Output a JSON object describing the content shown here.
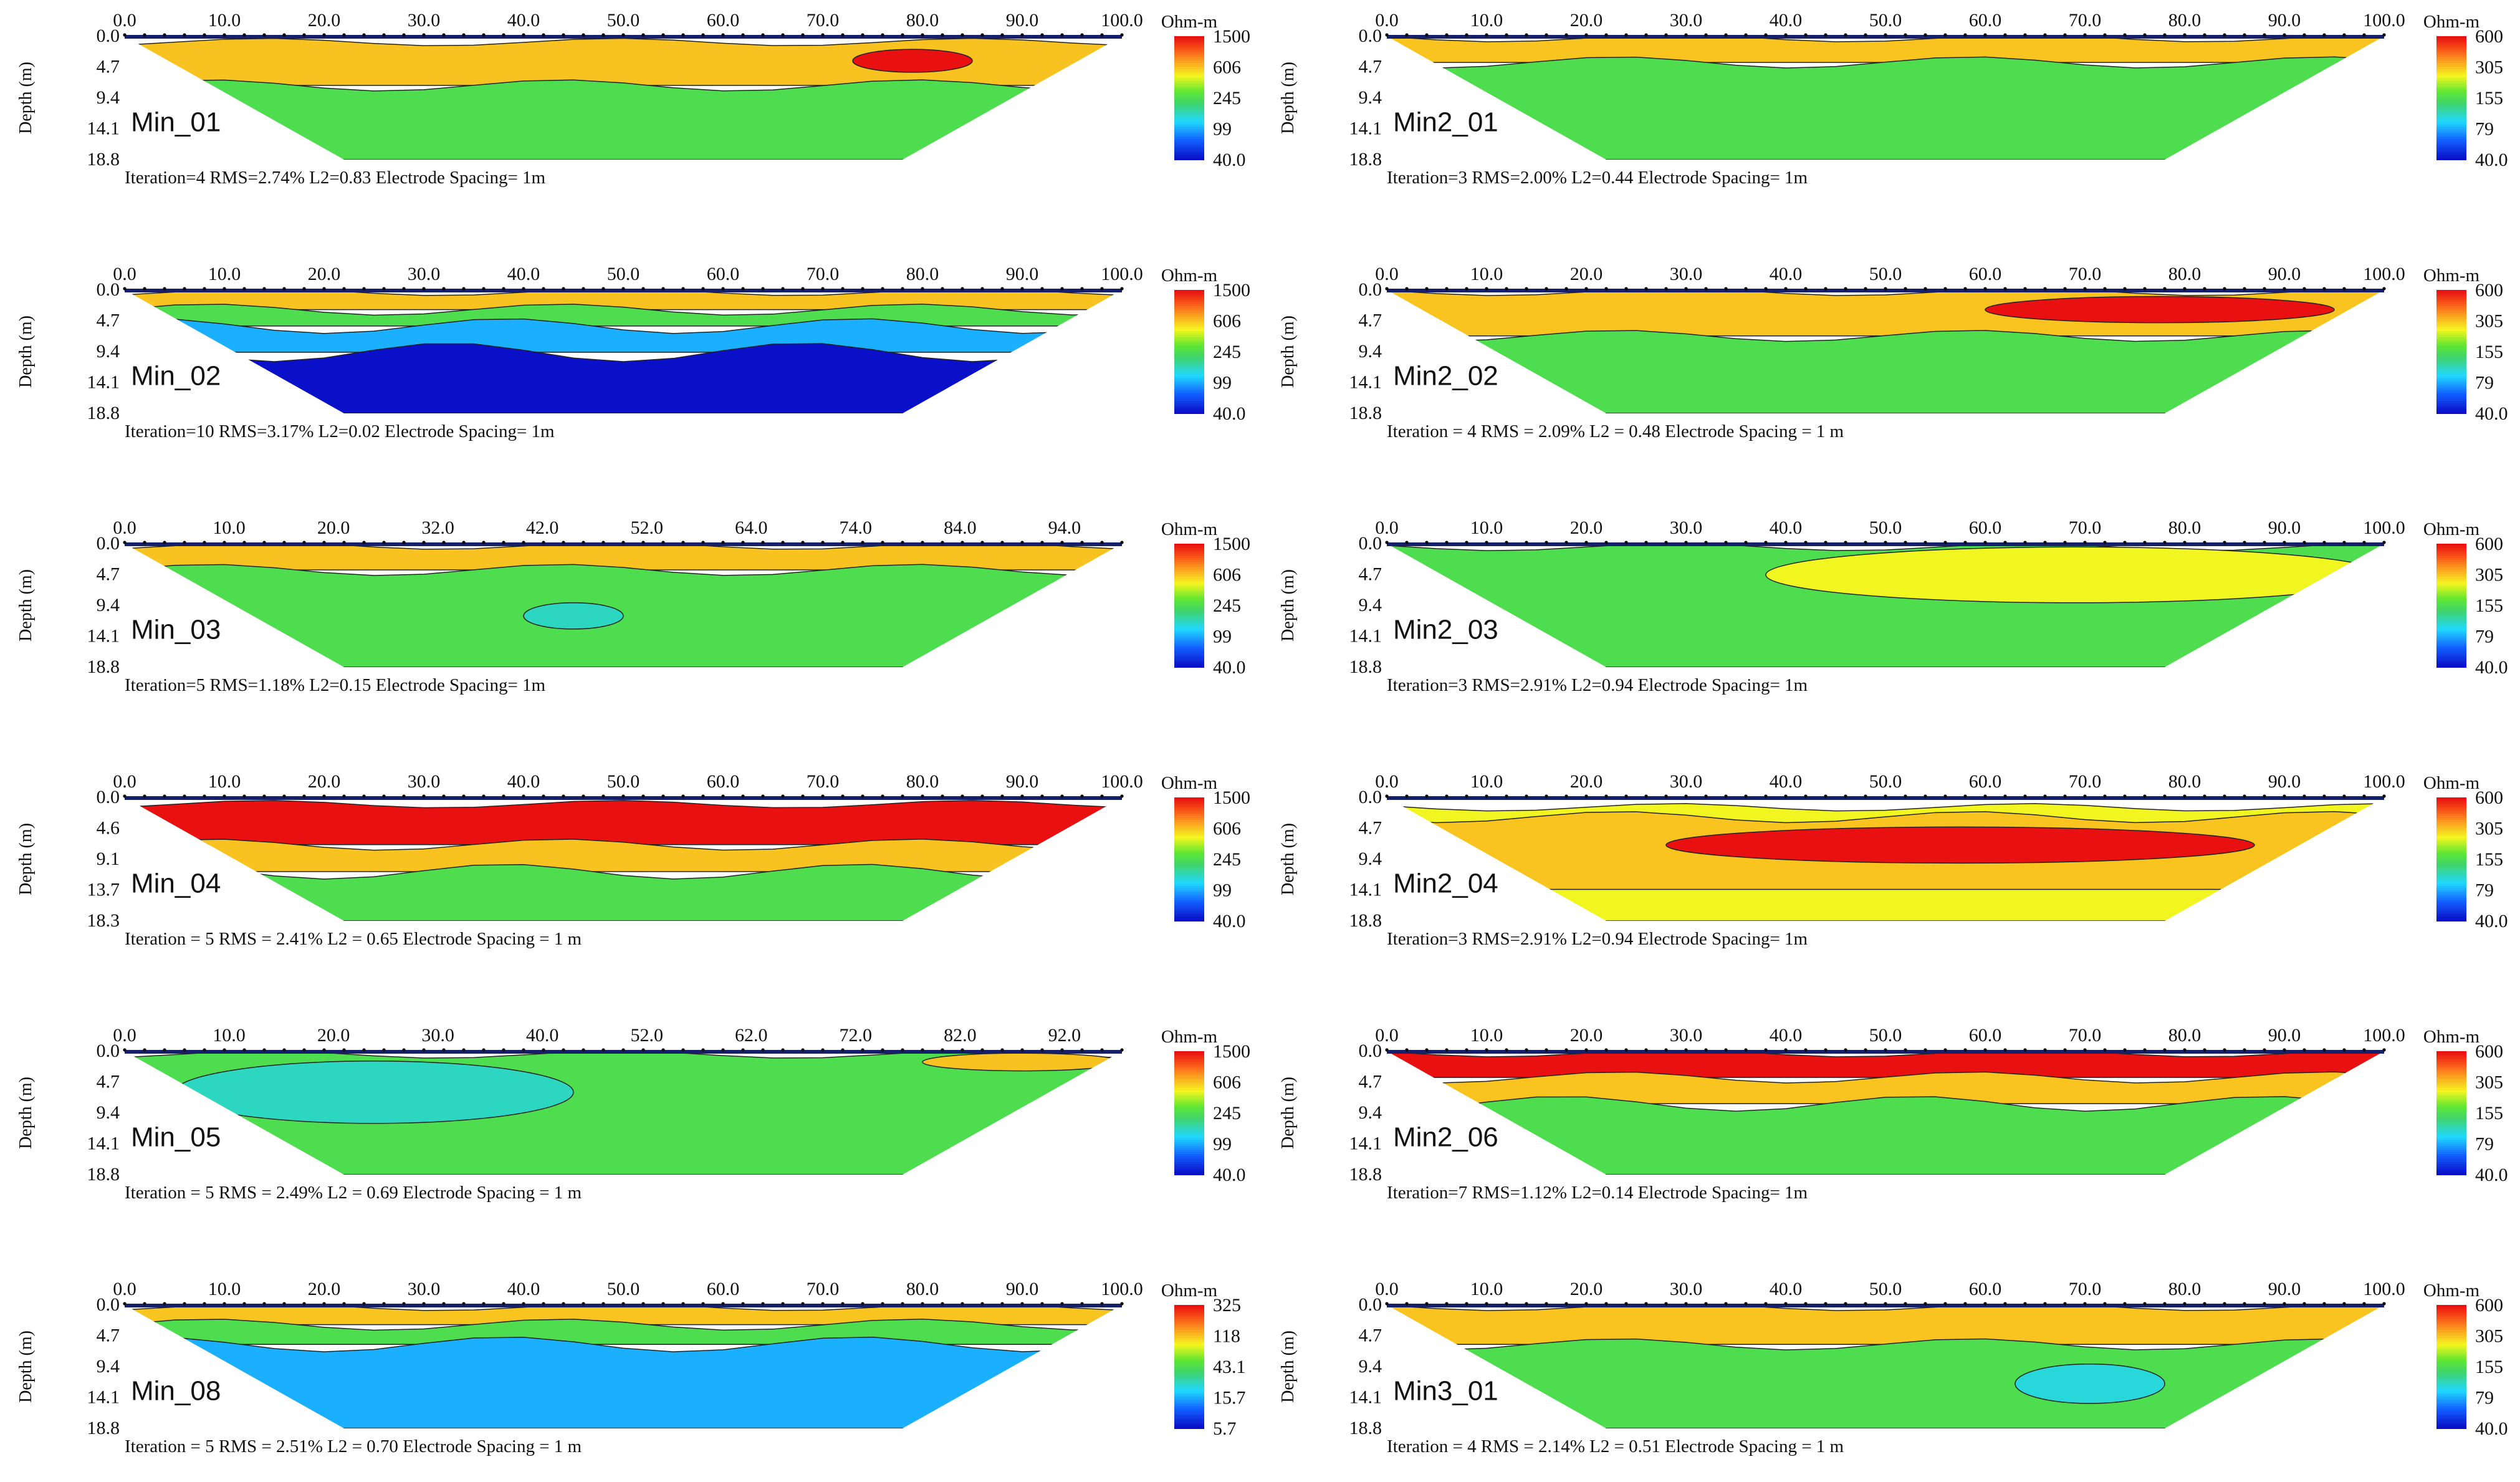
{
  "chart_data": [
    {
      "type": "heatmap",
      "profile": "Min_01",
      "x_ticks": [
        "0.0",
        "10.0",
        "20.0",
        "30.0",
        "40.0",
        "50.0",
        "60.0",
        "70.0",
        "80.0",
        "90.0",
        "100.0"
      ],
      "depth_ticks": [
        "0.0",
        "4.7",
        "9.4",
        "14.1",
        "18.8"
      ],
      "ylabel": "Depth (m)",
      "unit": "Ohm-m",
      "scale": [
        "1500",
        "606",
        "245",
        "99",
        "40.0"
      ],
      "caption": "Iteration=4  RMS=2.74%  L2=0.83  Electrode Spacing= 1m",
      "layers": [
        {
          "ohm_m": 606,
          "top_m": 0.9,
          "bottom_m": 7.5
        },
        {
          "ohm_m": 245,
          "top_m": 7.5,
          "bottom_m": 18.8
        },
        {
          "ohm_m": 1500,
          "top_m": 2.0,
          "bottom_m": 5.5,
          "x_from": 73,
          "x_to": 85
        }
      ]
    },
    {
      "type": "heatmap",
      "profile": "Min_02",
      "x_ticks": [
        "0.0",
        "10.0",
        "20.0",
        "30.0",
        "40.0",
        "50.0",
        "60.0",
        "70.0",
        "80.0",
        "90.0",
        "100.0"
      ],
      "depth_ticks": [
        "0.0",
        "4.7",
        "9.4",
        "14.1",
        "18.8"
      ],
      "ylabel": "Depth (m)",
      "unit": "Ohm-m",
      "scale": [
        "1500",
        "606",
        "245",
        "99",
        "40.0"
      ],
      "caption": "Iteration=10  RMS=3.17%  L2=0.02  Electrode Spacing= 1m",
      "layers": [
        {
          "ohm_m": 606,
          "top_m": 0.3,
          "bottom_m": 3.0
        },
        {
          "ohm_m": 245,
          "top_m": 3.0,
          "bottom_m": 5.5
        },
        {
          "ohm_m": 99,
          "top_m": 5.5,
          "bottom_m": 9.5
        },
        {
          "ohm_m": 40,
          "top_m": 9.5,
          "bottom_m": 18.8
        }
      ]
    },
    {
      "type": "heatmap",
      "profile": "Min_03",
      "x_ticks": [
        "0.0",
        "10.0",
        "20.0",
        "32.0",
        "42.0",
        "52.0",
        "64.0",
        "74.0",
        "84.0",
        "94.0"
      ],
      "depth_ticks": [
        "0.0",
        "4.7",
        "9.4",
        "14.1",
        "18.8"
      ],
      "ylabel": "Depth (m)",
      "unit": "Ohm-m",
      "scale": [
        "1500",
        "606",
        "245",
        "99",
        "40.0"
      ],
      "caption": "Iteration=5  RMS=1.18%  L2=0.15  Electrode Spacing= 1m",
      "layers": [
        {
          "ohm_m": 606,
          "top_m": 0.3,
          "bottom_m": 4.0
        },
        {
          "ohm_m": 245,
          "top_m": 4.0,
          "bottom_m": 18.8
        },
        {
          "ohm_m": 150,
          "top_m": 9.0,
          "bottom_m": 13.0,
          "x_from": 40,
          "x_to": 50
        }
      ]
    },
    {
      "type": "heatmap",
      "profile": "Min_04",
      "x_ticks": [
        "0.0",
        "10.0",
        "20.0",
        "30.0",
        "40.0",
        "50.0",
        "60.0",
        "70.0",
        "80.0",
        "90.0",
        "100.0"
      ],
      "depth_ticks": [
        "0.0",
        "4.6",
        "9.1",
        "13.7",
        "18.3"
      ],
      "ylabel": "Depth (m)",
      "unit": "Ohm-m",
      "scale": [
        "1500",
        "606",
        "245",
        "99",
        "40.0"
      ],
      "caption": "Iteration = 5    RMS = 2.41%    L2 = 0.65    Electrode Spacing = 1 m",
      "layers": [
        {
          "ohm_m": 1500,
          "top_m": 1.0,
          "bottom_m": 7.0
        },
        {
          "ohm_m": 606,
          "top_m": 7.0,
          "bottom_m": 11.0
        },
        {
          "ohm_m": 245,
          "top_m": 11.0,
          "bottom_m": 18.3
        }
      ]
    },
    {
      "type": "heatmap",
      "profile": "Min_05",
      "x_ticks": [
        "0.0",
        "10.0",
        "20.0",
        "30.0",
        "40.0",
        "52.0",
        "62.0",
        "72.0",
        "82.0",
        "92.0"
      ],
      "depth_ticks": [
        "0.0",
        "4.7",
        "9.4",
        "14.1",
        "18.8"
      ],
      "ylabel": "Depth (m)",
      "unit": "Ohm-m",
      "scale": [
        "1500",
        "606",
        "245",
        "99",
        "40.0"
      ],
      "caption": "Iteration = 5    RMS = 2.49%    L2 = 0.69    Electrode Spacing = 1 m",
      "layers": [
        {
          "ohm_m": 245,
          "top_m": 0.5,
          "bottom_m": 18.8
        },
        {
          "ohm_m": 150,
          "top_m": 1.5,
          "bottom_m": 11.0,
          "x_from": 5,
          "x_to": 45
        },
        {
          "ohm_m": 606,
          "top_m": 0.3,
          "bottom_m": 3.0,
          "x_from": 80,
          "x_to": 100
        }
      ]
    },
    {
      "type": "heatmap",
      "profile": "Min_08",
      "x_ticks": [
        "0.0",
        "10.0",
        "20.0",
        "30.0",
        "40.0",
        "50.0",
        "60.0",
        "70.0",
        "80.0",
        "90.0",
        "100.0"
      ],
      "depth_ticks": [
        "0.0",
        "4.7",
        "9.4",
        "14.1",
        "18.8"
      ],
      "ylabel": "Depth (m)",
      "unit": "Ohm-m",
      "scale": [
        "325",
        "118",
        "43.1",
        "15.7",
        "5.7"
      ],
      "caption": "Iteration = 5    RMS = 2.51%    L2 = 0.70    Electrode Spacing = 1 m",
      "layers": [
        {
          "ohm_m": 118,
          "top_m": 0.3,
          "bottom_m": 3.0
        },
        {
          "ohm_m": 43.1,
          "top_m": 3.0,
          "bottom_m": 6.0
        },
        {
          "ohm_m": 15.7,
          "top_m": 6.0,
          "bottom_m": 18.8
        }
      ]
    },
    {
      "type": "heatmap",
      "profile": "Min2_01",
      "x_ticks": [
        "0.0",
        "10.0",
        "20.0",
        "30.0",
        "40.0",
        "50.0",
        "60.0",
        "70.0",
        "80.0",
        "90.0",
        "100.0"
      ],
      "depth_ticks": [
        "0.0",
        "4.7",
        "9.4",
        "14.1",
        "18.8"
      ],
      "ylabel": "Depth (m)",
      "unit": "Ohm-m",
      "scale": [
        "600",
        "305",
        "155",
        "79",
        "40.0"
      ],
      "caption": "Iteration=3  RMS=2.00%  L2=0.44  Electrode Spacing= 1m",
      "layers": [
        {
          "ohm_m": 305,
          "top_m": 0.3,
          "bottom_m": 4.0
        },
        {
          "ohm_m": 155,
          "top_m": 4.0,
          "bottom_m": 18.8
        }
      ]
    },
    {
      "type": "heatmap",
      "profile": "Min2_02",
      "x_ticks": [
        "0.0",
        "10.0",
        "20.0",
        "30.0",
        "40.0",
        "50.0",
        "60.0",
        "70.0",
        "80.0",
        "90.0",
        "100.0"
      ],
      "depth_ticks": [
        "0.0",
        "4.7",
        "9.4",
        "14.1",
        "18.8"
      ],
      "ylabel": "Depth (m)",
      "unit": "Ohm-m",
      "scale": [
        "600",
        "305",
        "155",
        "79",
        "40.0"
      ],
      "caption": "Iteration = 4    RMS = 2.09%    L2 = 0.48      Electrode Spacing = 1 m",
      "layers": [
        {
          "ohm_m": 305,
          "top_m": 0.3,
          "bottom_m": 7.0
        },
        {
          "ohm_m": 155,
          "top_m": 7.0,
          "bottom_m": 18.8
        },
        {
          "ohm_m": 600,
          "top_m": 1.0,
          "bottom_m": 5.0,
          "x_from": 60,
          "x_to": 95
        }
      ]
    },
    {
      "type": "heatmap",
      "profile": "Min2_03",
      "x_ticks": [
        "0.0",
        "10.0",
        "20.0",
        "30.0",
        "40.0",
        "50.0",
        "60.0",
        "70.0",
        "80.0",
        "90.0",
        "100.0"
      ],
      "depth_ticks": [
        "0.0",
        "4.7",
        "9.4",
        "14.1",
        "18.8"
      ],
      "ylabel": "Depth (m)",
      "unit": "Ohm-m",
      "scale": [
        "600",
        "305",
        "155",
        "79",
        "40.0"
      ],
      "caption": "Iteration=3  RMS=2.91%  L2=0.94  Electrode Spacing= 1m",
      "layers": [
        {
          "ohm_m": 155,
          "top_m": 0.5,
          "bottom_m": 18.8
        },
        {
          "ohm_m": 250,
          "top_m": 0.5,
          "bottom_m": 9.0,
          "x_from": 38,
          "x_to": 100
        }
      ]
    },
    {
      "type": "heatmap",
      "profile": "Min2_04",
      "x_ticks": [
        "0.0",
        "10.0",
        "20.0",
        "30.0",
        "40.0",
        "50.0",
        "60.0",
        "70.0",
        "80.0",
        "90.0",
        "100.0"
      ],
      "depth_ticks": [
        "0.0",
        "4.7",
        "9.4",
        "14.1",
        "18.8"
      ],
      "ylabel": "Depth (m)",
      "unit": "Ohm-m",
      "scale": [
        "600",
        "305",
        "155",
        "79",
        "40.0"
      ],
      "caption": "Iteration=3  RMS=2.91%  L2=0.94  Electrode Spacing= 1m",
      "layers": [
        {
          "ohm_m": 250,
          "top_m": 1.5,
          "bottom_m": 18.8
        },
        {
          "ohm_m": 305,
          "top_m": 3.0,
          "bottom_m": 14.0
        },
        {
          "ohm_m": 600,
          "top_m": 4.5,
          "bottom_m": 10.0,
          "x_from": 28,
          "x_to": 87
        }
      ]
    },
    {
      "type": "heatmap",
      "profile": "Min2_06",
      "x_ticks": [
        "0.0",
        "10.0",
        "20.0",
        "30.0",
        "40.0",
        "50.0",
        "60.0",
        "70.0",
        "80.0",
        "90.0",
        "100.0"
      ],
      "depth_ticks": [
        "0.0",
        "4.7",
        "9.4",
        "14.1",
        "18.8"
      ],
      "ylabel": "Depth (m)",
      "unit": "Ohm-m",
      "scale": [
        "600",
        "305",
        "155",
        "79",
        "40.0"
      ],
      "caption": "Iteration=7  RMS=1.12%  L2=0.14  Electrode Spacing= 1m",
      "layers": [
        {
          "ohm_m": 600,
          "top_m": 0.3,
          "bottom_m": 4.0
        },
        {
          "ohm_m": 305,
          "top_m": 4.0,
          "bottom_m": 8.0
        },
        {
          "ohm_m": 155,
          "top_m": 8.0,
          "bottom_m": 18.8
        }
      ]
    },
    {
      "type": "heatmap",
      "profile": "Min3_01",
      "x_ticks": [
        "0.0",
        "10.0",
        "20.0",
        "30.0",
        "40.0",
        "50.0",
        "60.0",
        "70.0",
        "80.0",
        "90.0",
        "100.0"
      ],
      "depth_ticks": [
        "0.0",
        "4.7",
        "9.4",
        "14.1",
        "18.8"
      ],
      "ylabel": "Depth (m)",
      "unit": "Ohm-m",
      "scale": [
        "600",
        "305",
        "155",
        "79",
        "40.0"
      ],
      "caption": "Iteration = 4    RMS = 2.14%    L2 = 0.51    Electrode Spacing = 1 m",
      "layers": [
        {
          "ohm_m": 305,
          "top_m": 0.3,
          "bottom_m": 6.0
        },
        {
          "ohm_m": 155,
          "top_m": 6.0,
          "bottom_m": 18.8
        },
        {
          "ohm_m": 100,
          "top_m": 9.0,
          "bottom_m": 15.0,
          "x_from": 63,
          "x_to": 78
        }
      ]
    }
  ]
}
